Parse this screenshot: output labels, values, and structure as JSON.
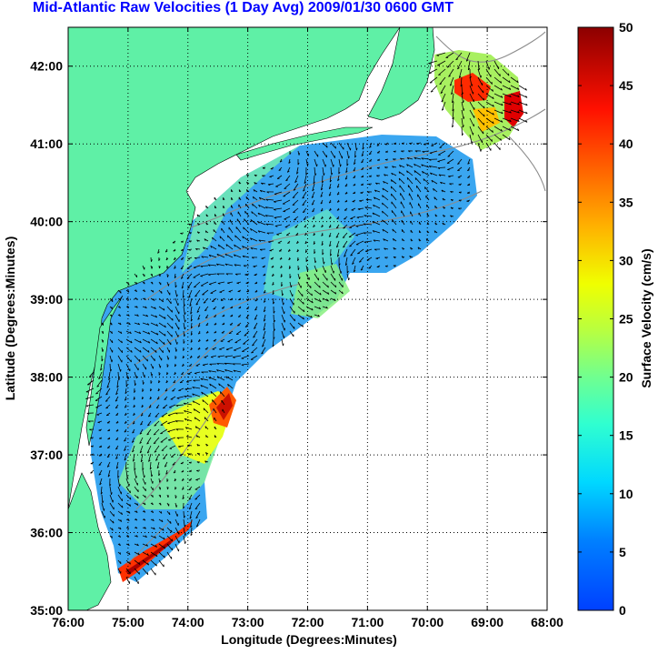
{
  "title": "Mid-Atlantic Raw Velocities (1 Day Avg) 2009/01/30 0600 GMT",
  "xlabel": "Longitude (Degrees:Minutes)",
  "ylabel": "Latitude (Degrees:Minutes)",
  "x_ticks": [
    "76:00",
    "75:00",
    "74:00",
    "73:00",
    "72:00",
    "71:00",
    "70:00",
    "69:00",
    "68:00"
  ],
  "y_ticks": [
    "35:00",
    "36:00",
    "37:00",
    "38:00",
    "39:00",
    "40:00",
    "41:00",
    "42:00"
  ],
  "colorbar": {
    "label": "Surface Velocity (cm/s)",
    "ticks": [
      "0",
      "5",
      "10",
      "15",
      "20",
      "25",
      "30",
      "35",
      "40",
      "45",
      "50"
    ],
    "range": [
      0,
      50
    ]
  },
  "colors": {
    "land": "#5ff0a6",
    "title": "#0000ff",
    "axis": "#000000",
    "bathymetry": "#8c8c8c"
  },
  "extent": {
    "lon": [
      -76,
      -68
    ],
    "lat": [
      35,
      42.5
    ]
  }
}
